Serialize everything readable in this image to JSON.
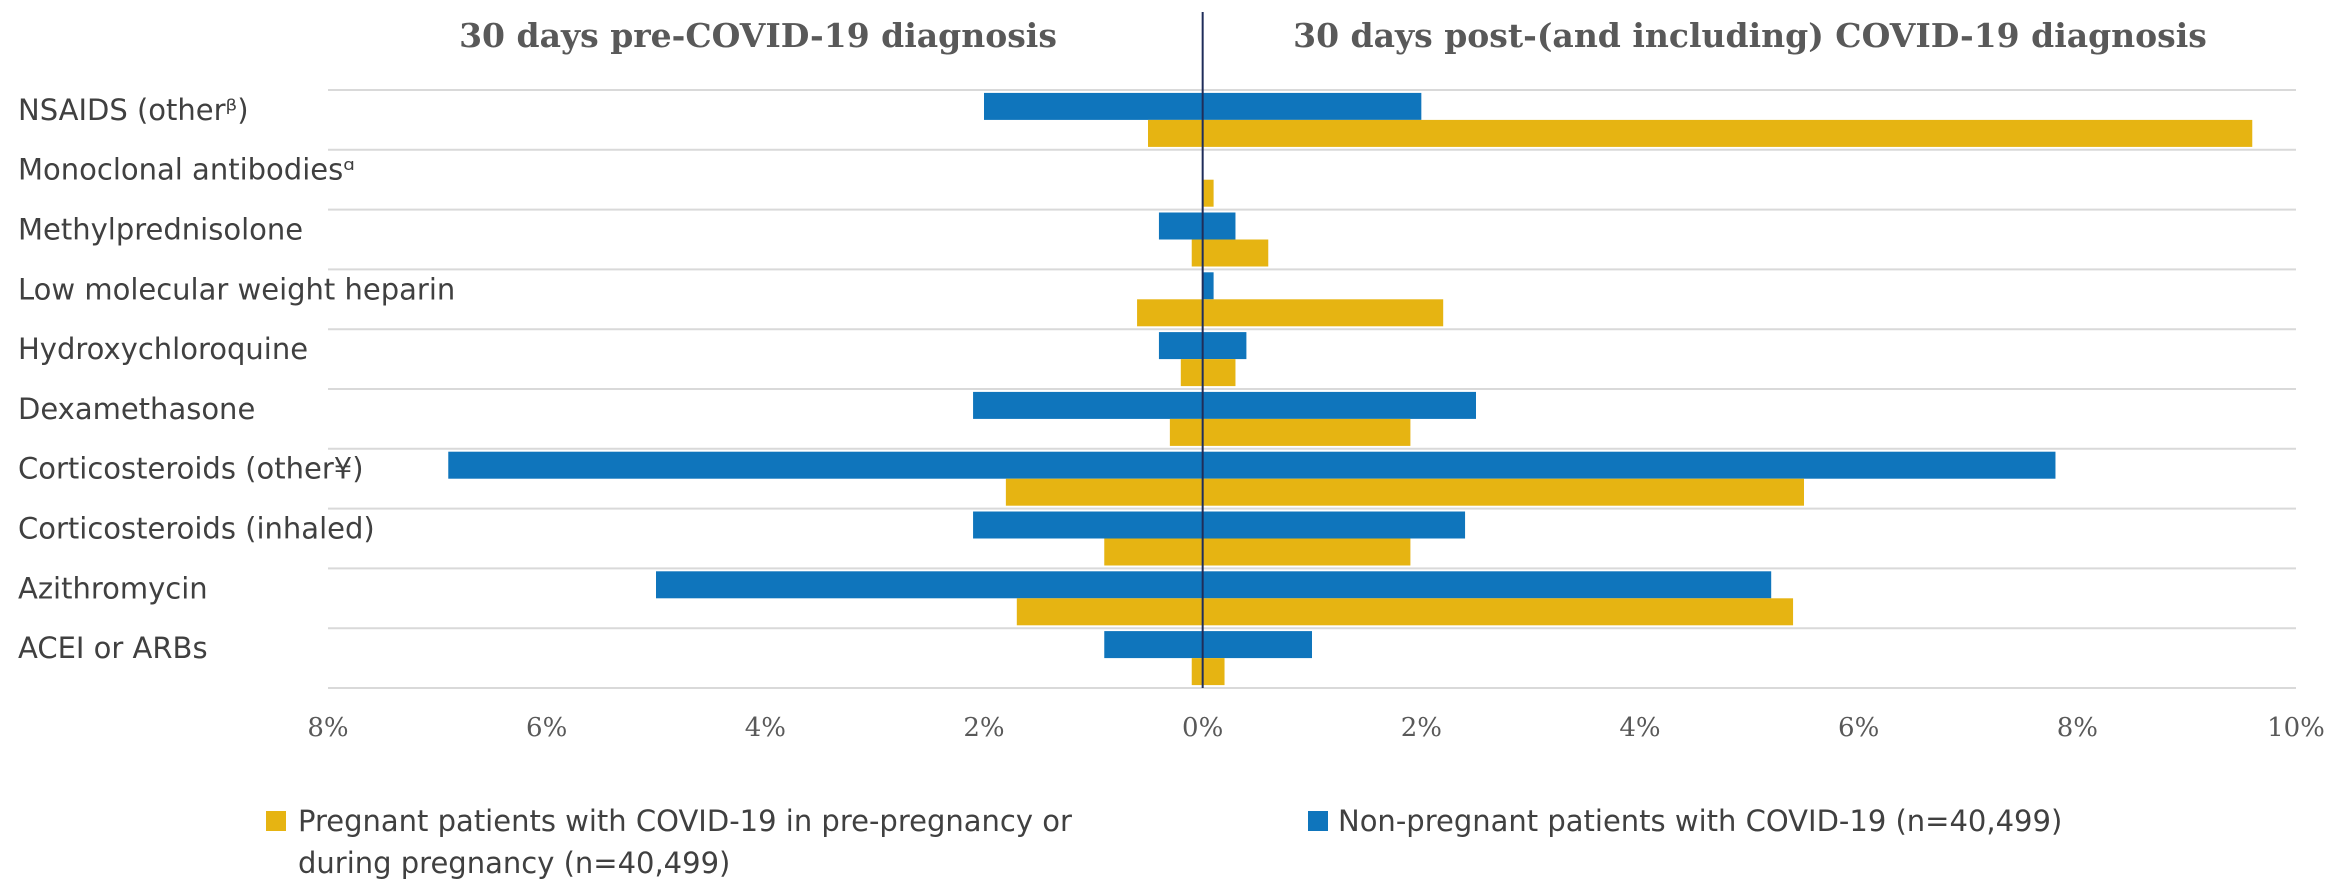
{
  "chart_data": {
    "type": "butterfly-bar",
    "left_title": "30 days pre-COVID-19 diagnosis",
    "right_title": "30 days post-(and including) COVID-19 diagnosis",
    "categories": [
      "NSAIDS (otherᵝ)",
      "Monoclonal antibodiesᵅ",
      "Methylprednisolone",
      "Low molecular weight heparin",
      "Hydroxychloroquine",
      "Dexamethasone",
      "Corticosteroids (other¥)",
      "Corticosteroids (inhaled)",
      "Azithromycin",
      "ACEI or ARBs"
    ],
    "series": [
      {
        "name": "Non-pregnant patients with COVID-19 (n=40,499)",
        "color": "#0f75bc",
        "pre": [
          -2.0,
          0,
          -0.4,
          0,
          -0.4,
          -2.1,
          -6.9,
          -2.1,
          -5.0,
          -0.9
        ],
        "post": [
          2.0,
          0,
          0.3,
          0.1,
          0.4,
          2.5,
          7.8,
          2.4,
          5.2,
          1.0
        ]
      },
      {
        "name": "Pregnant patients with COVID-19 in pre-pregnancy or during pregnancy (n=40,499)",
        "color": "#e6b412",
        "pre": [
          -0.5,
          0,
          -0.1,
          -0.6,
          -0.2,
          -0.3,
          -1.8,
          -0.9,
          -1.7,
          -0.1
        ],
        "post": [
          9.6,
          0.1,
          0.6,
          2.2,
          0.3,
          1.9,
          5.5,
          1.9,
          5.4,
          0.2
        ]
      }
    ],
    "xlim": [
      -8,
      10
    ],
    "xticks": [
      {
        "value": -8,
        "label": "8%"
      },
      {
        "value": -6,
        "label": "6%"
      },
      {
        "value": -4,
        "label": "4%"
      },
      {
        "value": -2,
        "label": "2%"
      },
      {
        "value": 0,
        "label": "0%"
      },
      {
        "value": 2,
        "label": "2%"
      },
      {
        "value": 4,
        "label": "4%"
      },
      {
        "value": 6,
        "label": "6%"
      },
      {
        "value": 8,
        "label": "8%"
      },
      {
        "value": 10,
        "label": "10%"
      }
    ]
  }
}
